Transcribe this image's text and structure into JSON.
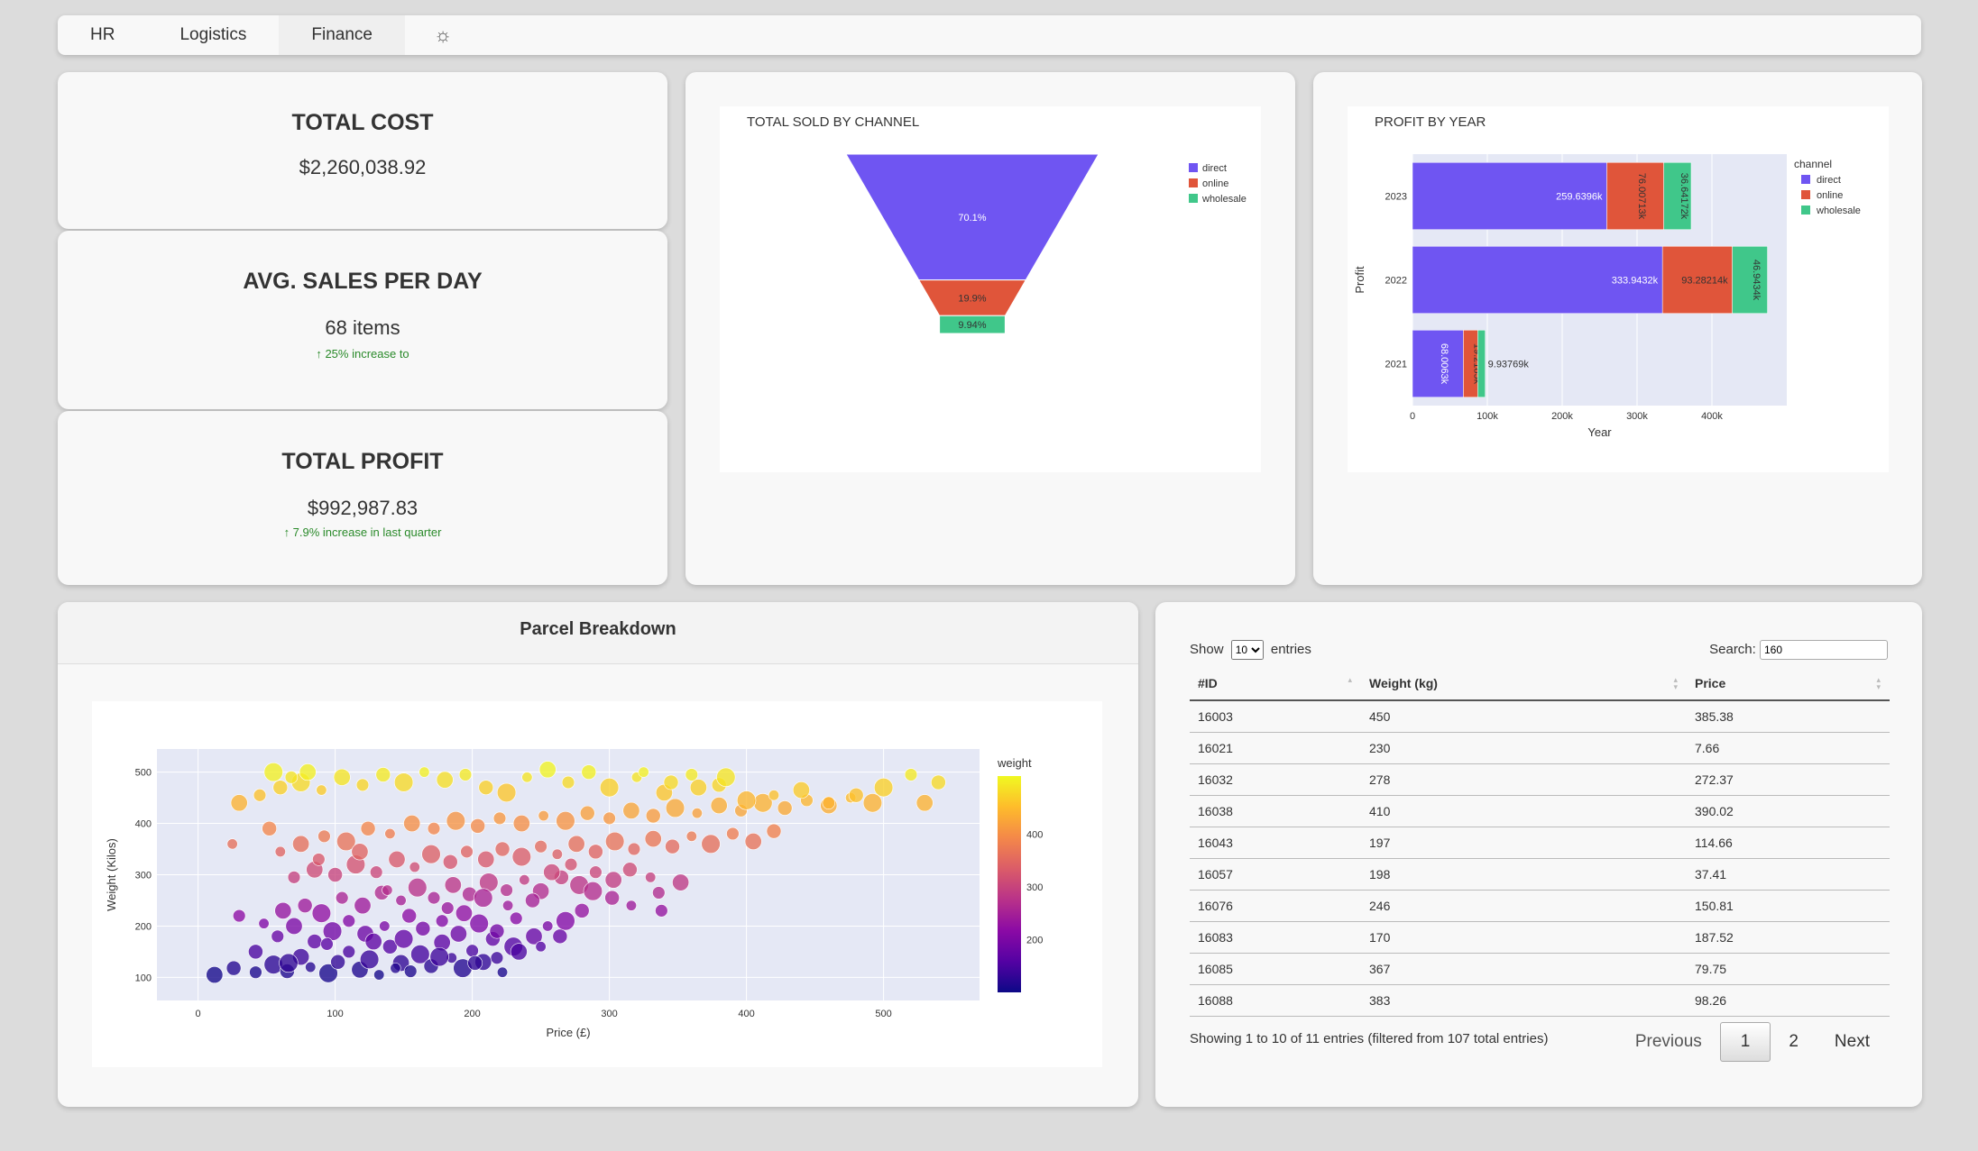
{
  "nav": {
    "items": [
      {
        "label": "HR"
      },
      {
        "label": "Logistics"
      },
      {
        "label": "Finance"
      }
    ],
    "settings_icon": "sun-icon"
  },
  "kpis": {
    "total_cost": {
      "title": "TOTAL COST",
      "value": "$2,260,038.92"
    },
    "avg_sales": {
      "title": "AVG. SALES PER DAY",
      "value": "68 items",
      "note": "↑ 25% increase to"
    },
    "total_profit": {
      "title": "TOTAL PROFIT",
      "value": "$992,987.83",
      "note": "↑ 7.9% increase in last quarter"
    }
  },
  "funnel": {
    "chart_data": {
      "type": "funnel",
      "title": "TOTAL SOLD BY CHANNEL",
      "categories": [
        "direct",
        "online",
        "wholesale"
      ],
      "values": [
        70.1,
        19.9,
        9.94
      ],
      "labels": [
        "70.1%",
        "19.9%",
        "9.94%"
      ],
      "colors": [
        "#6f55f2",
        "#e0553a",
        "#40c78a"
      ],
      "legend_position": "top-right"
    }
  },
  "profit_chart": {
    "chart_data": {
      "type": "bar",
      "orientation": "horizontal",
      "stacked": true,
      "title": "PROFIT BY YEAR",
      "xlabel": "Year",
      "ylabel": "Profit",
      "legend_title": "channel",
      "categories": [
        "2023",
        "2022",
        "2021"
      ],
      "xlim": [
        0,
        500000
      ],
      "x_ticks": [
        "0",
        "100k",
        "200k",
        "300k",
        "400k"
      ],
      "series": [
        {
          "name": "direct",
          "color": "#6f55f2",
          "values": [
            259639.6,
            333943.2,
            68006.3
          ],
          "labels": [
            "259.6396k",
            "333.9432k",
            "68.0063k"
          ]
        },
        {
          "name": "online",
          "color": "#e0553a",
          "values": [
            76007.13,
            93282.14,
            19218.5
          ],
          "labels": [
            "76.00713k",
            "93.28214k",
            "19.2185k"
          ]
        },
        {
          "name": "wholesale",
          "color": "#40c78a",
          "values": [
            36641.72,
            46943.4,
            9937.69
          ],
          "labels": [
            "36.64172k",
            "46.9434k",
            "9.93769k"
          ]
        }
      ]
    }
  },
  "parcel": {
    "title": "Parcel Breakdown",
    "chart_data": {
      "type": "scatter",
      "xlabel": "Price (£)",
      "ylabel": "Weight (Kilos)",
      "xlim": [
        -30,
        570
      ],
      "ylim": [
        55,
        545
      ],
      "x_ticks": [
        0,
        100,
        200,
        300,
        400,
        500
      ],
      "y_ticks": [
        100,
        200,
        300,
        400,
        500
      ],
      "colorbar_title": "weight",
      "colorbar_ticks": [
        200,
        300,
        400
      ],
      "colorbar_range": [
        100,
        510
      ],
      "points": [
        [
          12,
          105,
          8
        ],
        [
          26,
          118,
          7
        ],
        [
          42,
          110,
          6
        ],
        [
          55,
          125,
          9
        ],
        [
          65,
          112,
          7
        ],
        [
          75,
          140,
          8
        ],
        [
          82,
          120,
          5
        ],
        [
          95,
          108,
          9
        ],
        [
          102,
          130,
          7
        ],
        [
          110,
          150,
          6
        ],
        [
          118,
          115,
          8
        ],
        [
          125,
          135,
          9
        ],
        [
          132,
          105,
          5
        ],
        [
          140,
          160,
          7
        ],
        [
          148,
          128,
          8
        ],
        [
          155,
          112,
          6
        ],
        [
          162,
          145,
          9
        ],
        [
          170,
          122,
          7
        ],
        [
          178,
          168,
          8
        ],
        [
          185,
          138,
          5
        ],
        [
          193,
          118,
          9
        ],
        [
          200,
          152,
          6
        ],
        [
          208,
          130,
          8
        ],
        [
          215,
          175,
          7
        ],
        [
          222,
          110,
          5
        ],
        [
          230,
          160,
          9
        ],
        [
          58,
          180,
          6
        ],
        [
          70,
          200,
          8
        ],
        [
          85,
          170,
          7
        ],
        [
          98,
          190,
          9
        ],
        [
          110,
          210,
          6
        ],
        [
          122,
          185,
          8
        ],
        [
          136,
          200,
          5
        ],
        [
          150,
          175,
          9
        ],
        [
          164,
          195,
          7
        ],
        [
          178,
          210,
          6
        ],
        [
          190,
          185,
          8
        ],
        [
          205,
          205,
          9
        ],
        [
          218,
          190,
          7
        ],
        [
          232,
          215,
          6
        ],
        [
          245,
          180,
          8
        ],
        [
          255,
          200,
          5
        ],
        [
          268,
          210,
          9
        ],
        [
          280,
          230,
          7
        ],
        [
          30,
          220,
          6
        ],
        [
          48,
          205,
          5
        ],
        [
          62,
          230,
          8
        ],
        [
          78,
          240,
          7
        ],
        [
          90,
          225,
          9
        ],
        [
          105,
          255,
          6
        ],
        [
          120,
          240,
          8
        ],
        [
          134,
          265,
          7
        ],
        [
          148,
          250,
          5
        ],
        [
          160,
          275,
          9
        ],
        [
          172,
          255,
          6
        ],
        [
          186,
          280,
          8
        ],
        [
          198,
          262,
          7
        ],
        [
          212,
          285,
          9
        ],
        [
          225,
          270,
          6
        ],
        [
          238,
          290,
          5
        ],
        [
          250,
          268,
          8
        ],
        [
          265,
          295,
          7
        ],
        [
          278,
          280,
          9
        ],
        [
          290,
          305,
          6
        ],
        [
          303,
          290,
          8
        ],
        [
          315,
          310,
          7
        ],
        [
          330,
          295,
          5
        ],
        [
          70,
          295,
          6
        ],
        [
          85,
          310,
          8
        ],
        [
          100,
          300,
          7
        ],
        [
          115,
          320,
          9
        ],
        [
          130,
          305,
          6
        ],
        [
          145,
          330,
          8
        ],
        [
          158,
          315,
          5
        ],
        [
          170,
          340,
          9
        ],
        [
          184,
          325,
          7
        ],
        [
          196,
          345,
          6
        ],
        [
          210,
          330,
          8
        ],
        [
          222,
          350,
          7
        ],
        [
          236,
          335,
          9
        ],
        [
          250,
          355,
          6
        ],
        [
          262,
          340,
          5
        ],
        [
          276,
          360,
          8
        ],
        [
          290,
          345,
          7
        ],
        [
          304,
          365,
          9
        ],
        [
          318,
          350,
          6
        ],
        [
          332,
          370,
          8
        ],
        [
          346,
          355,
          7
        ],
        [
          360,
          375,
          5
        ],
        [
          374,
          360,
          9
        ],
        [
          390,
          380,
          6
        ],
        [
          405,
          365,
          8
        ],
        [
          420,
          385,
          7
        ],
        [
          60,
          345,
          5
        ],
        [
          75,
          360,
          8
        ],
        [
          92,
          375,
          6
        ],
        [
          108,
          365,
          9
        ],
        [
          124,
          390,
          7
        ],
        [
          140,
          380,
          5
        ],
        [
          156,
          400,
          8
        ],
        [
          172,
          390,
          6
        ],
        [
          188,
          405,
          9
        ],
        [
          204,
          395,
          7
        ],
        [
          220,
          410,
          6
        ],
        [
          236,
          400,
          8
        ],
        [
          252,
          415,
          5
        ],
        [
          268,
          405,
          9
        ],
        [
          284,
          420,
          7
        ],
        [
          300,
          410,
          6
        ],
        [
          316,
          425,
          8
        ],
        [
          332,
          415,
          7
        ],
        [
          348,
          430,
          9
        ],
        [
          364,
          420,
          5
        ],
        [
          380,
          435,
          8
        ],
        [
          396,
          425,
          6
        ],
        [
          412,
          440,
          9
        ],
        [
          428,
          430,
          7
        ],
        [
          444,
          445,
          6
        ],
        [
          460,
          435,
          8
        ],
        [
          476,
          450,
          5
        ],
        [
          492,
          440,
          9
        ],
        [
          30,
          440,
          8
        ],
        [
          45,
          455,
          6
        ],
        [
          60,
          470,
          7
        ],
        [
          75,
          480,
          9
        ],
        [
          90,
          465,
          5
        ],
        [
          105,
          490,
          8
        ],
        [
          120,
          475,
          6
        ],
        [
          135,
          495,
          7
        ],
        [
          150,
          480,
          9
        ],
        [
          165,
          500,
          5
        ],
        [
          180,
          485,
          8
        ],
        [
          195,
          495,
          6
        ],
        [
          210,
          470,
          7
        ],
        [
          225,
          460,
          9
        ],
        [
          240,
          490,
          5
        ],
        [
          255,
          505,
          8
        ],
        [
          270,
          480,
          6
        ],
        [
          285,
          500,
          7
        ],
        [
          300,
          470,
          9
        ],
        [
          320,
          490,
          5
        ],
        [
          340,
          460,
          8
        ],
        [
          360,
          495,
          6
        ],
        [
          380,
          475,
          7
        ],
        [
          400,
          445,
          9
        ],
        [
          420,
          455,
          5
        ],
        [
          440,
          465,
          8
        ],
        [
          460,
          440,
          6
        ],
        [
          480,
          455,
          7
        ],
        [
          500,
          470,
          9
        ],
        [
          520,
          495,
          6
        ],
        [
          530,
          440,
          8
        ],
        [
          540,
          480,
          7
        ],
        [
          55,
          500,
          9
        ],
        [
          68,
          490,
          6
        ],
        [
          80,
          500,
          8
        ],
        [
          325,
          500,
          5
        ],
        [
          345,
          480,
          7
        ],
        [
          365,
          470,
          8
        ],
        [
          385,
          490,
          9
        ],
        [
          25,
          360,
          5
        ],
        [
          52,
          390,
          7
        ],
        [
          88,
          330,
          6
        ],
        [
          118,
          345,
          8
        ],
        [
          138,
          270,
          5
        ],
        [
          154,
          220,
          7
        ],
        [
          182,
          235,
          6
        ],
        [
          194,
          225,
          8
        ],
        [
          208,
          255,
          9
        ],
        [
          226,
          240,
          5
        ],
        [
          244,
          250,
          7
        ],
        [
          258,
          305,
          8
        ],
        [
          272,
          320,
          6
        ],
        [
          288,
          268,
          9
        ],
        [
          302,
          255,
          7
        ],
        [
          316,
          240,
          5
        ],
        [
          336,
          265,
          6
        ],
        [
          352,
          285,
          8
        ],
        [
          42,
          150,
          7
        ],
        [
          66,
          128,
          9
        ],
        [
          94,
          165,
          6
        ],
        [
          128,
          170,
          8
        ],
        [
          144,
          118,
          5
        ],
        [
          176,
          140,
          9
        ],
        [
          202,
          128,
          7
        ],
        [
          218,
          138,
          6
        ],
        [
          234,
          150,
          8
        ],
        [
          250,
          160,
          5
        ],
        [
          264,
          180,
          7
        ],
        [
          338,
          230,
          6
        ]
      ]
    }
  },
  "table": {
    "show_label": "Show",
    "entries_label": "entries",
    "page_size": "10",
    "search_label": "Search:",
    "search_value": "160",
    "columns": [
      "#ID",
      "Weight (kg)",
      "Price"
    ],
    "rows": [
      [
        "16003",
        "450",
        "385.38"
      ],
      [
        "16021",
        "230",
        "7.66"
      ],
      [
        "16032",
        "278",
        "272.37"
      ],
      [
        "16038",
        "410",
        "390.02"
      ],
      [
        "16043",
        "197",
        "114.66"
      ],
      [
        "16057",
        "198",
        "37.41"
      ],
      [
        "16076",
        "246",
        "150.81"
      ],
      [
        "16083",
        "170",
        "187.52"
      ],
      [
        "16085",
        "367",
        "79.75"
      ],
      [
        "16088",
        "383",
        "98.26"
      ]
    ],
    "info": "Showing 1 to 10 of 11 entries (filtered from 107 total entries)",
    "pager": {
      "previous": "Previous",
      "pages": [
        "1",
        "2"
      ],
      "current": "1",
      "next": "Next"
    }
  }
}
